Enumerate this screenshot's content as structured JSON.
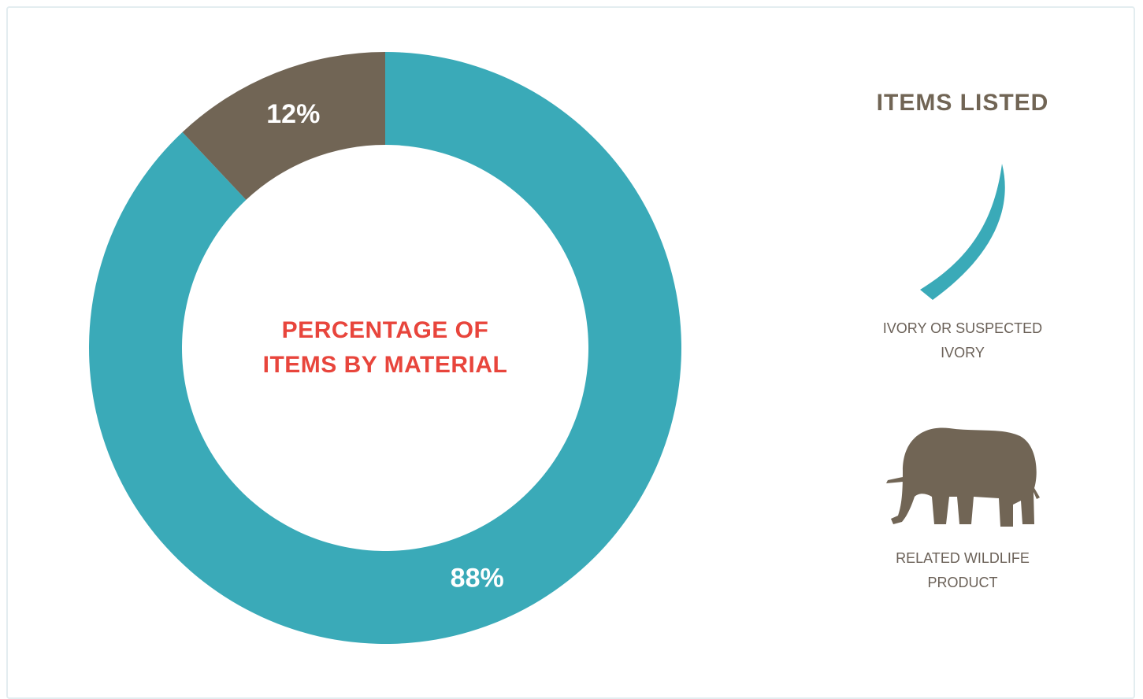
{
  "chart_data": {
    "type": "pie",
    "donut": true,
    "title": "PERCENTAGE OF ITEMS BY MATERIAL",
    "legend_title": "ITEMS LISTED",
    "categories": [
      "IVORY OR SUSPECTED IVORY",
      "RELATED WILDLIFE PRODUCT"
    ],
    "values": [
      88,
      12
    ],
    "value_labels": [
      "88%",
      "12%"
    ],
    "colors": [
      "#3aaab8",
      "#716555"
    ]
  }
}
